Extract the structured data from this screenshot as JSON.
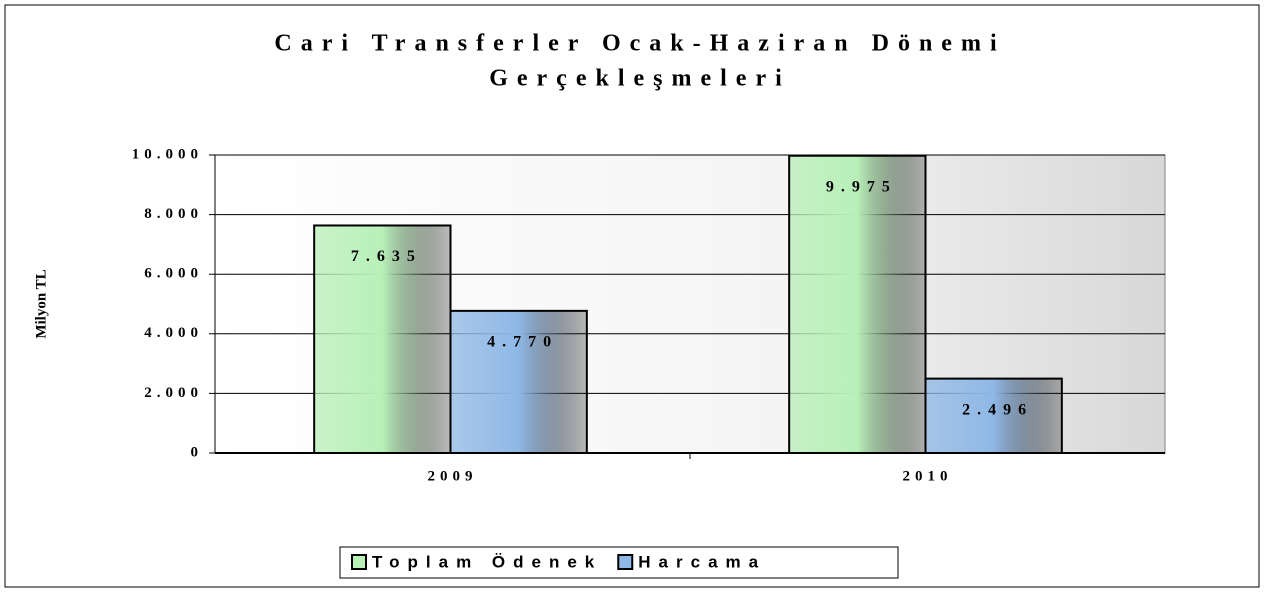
{
  "chart_data": {
    "type": "bar",
    "title": [
      "Cari Transferler Ocak-Haziran Dönemi",
      "Gerçekleşmeleri"
    ],
    "y_label": "Milyon TL",
    "categories": [
      "2009",
      "2010"
    ],
    "series": [
      {
        "name": "Toplam Ödenek",
        "color": "#b8f0b8",
        "values": [
          7635,
          9975
        ],
        "value_labels": [
          "7.635",
          "9.975"
        ]
      },
      {
        "name": "Harcama",
        "color": "#8fb8e6",
        "values": [
          4770,
          2496
        ],
        "value_labels": [
          "4.770",
          "2.496"
        ]
      }
    ],
    "ylim": [
      0,
      10000
    ],
    "yticks": [
      0,
      {
        "value": 2000,
        "label": "2.000"
      },
      {
        "value": 4000,
        "label": "4.000"
      },
      {
        "value": 6000,
        "label": "6.000"
      },
      {
        "value": 8000,
        "label": "8.000"
      },
      {
        "value": 10000,
        "label": "10.000"
      }
    ],
    "grid": true,
    "legend": "bottom"
  }
}
